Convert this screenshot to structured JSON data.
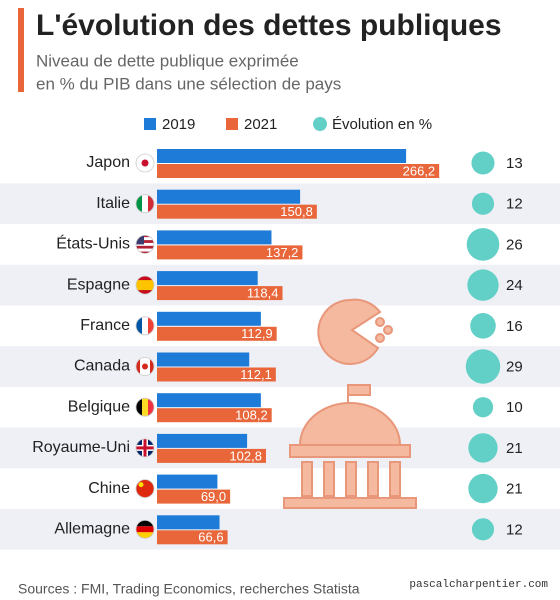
{
  "chart_data": {
    "type": "bar",
    "orientation": "horizontal",
    "title": "L'évolution des dettes publiques",
    "subtitle": [
      "Niveau de dette publique exprimée",
      "en % du PIB dans une sélection de pays"
    ],
    "categories": [
      "Japon",
      "Italie",
      "États-Unis",
      "Espagne",
      "France",
      "Canada",
      "Belgique",
      "Royaume-Uni",
      "Chine",
      "Allemagne"
    ],
    "series": [
      {
        "name": "2019",
        "color": "#1f7bd8",
        "values": [
          235,
          135,
          108,
          95,
          98,
          87,
          98,
          85,
          57,
          59
        ]
      },
      {
        "name": "2021",
        "color": "#e8663a",
        "values": [
          266.2,
          150.8,
          137.2,
          118.4,
          112.9,
          112.1,
          108.2,
          102.8,
          69.0,
          66.6
        ],
        "value_labels": [
          "266,2",
          "150,8",
          "137,2",
          "118,4",
          "112,9",
          "112,1",
          "108,2",
          "102,8",
          "69,0",
          "66,6"
        ]
      },
      {
        "name": "Évolution en %",
        "color": "#62d0c6",
        "values": [
          13,
          12,
          26,
          24,
          16,
          29,
          10,
          21,
          21,
          12
        ]
      }
    ],
    "source": "Sources : FMI, Trading Economics, recherches Statista",
    "watermark": "pascalcharpentier.com"
  }
}
